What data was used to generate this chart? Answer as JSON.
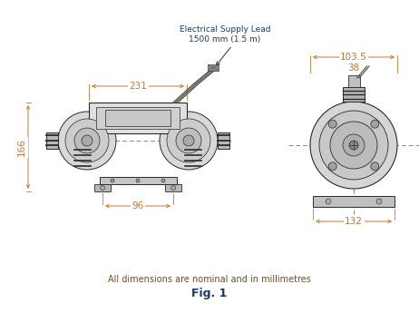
{
  "title": "Fig. 1",
  "subtitle": "All dimensions are nominal and in millimetres",
  "title_color": "#1a3a6b",
  "subtitle_color": "#7a4a1a",
  "dim_color": "#c87830",
  "line_color": "#2a2a2a",
  "dashed_color": "#888888",
  "bg_color": "#ffffff",
  "dim_231": "231",
  "dim_166": "166",
  "dim_96": "96",
  "dim_103_5": "103.5",
  "dim_38": "38",
  "dim_132": "132",
  "elec_label_line1": "Electrical Supply Lead",
  "elec_label_line2": "1500 mm (1.5 m)"
}
